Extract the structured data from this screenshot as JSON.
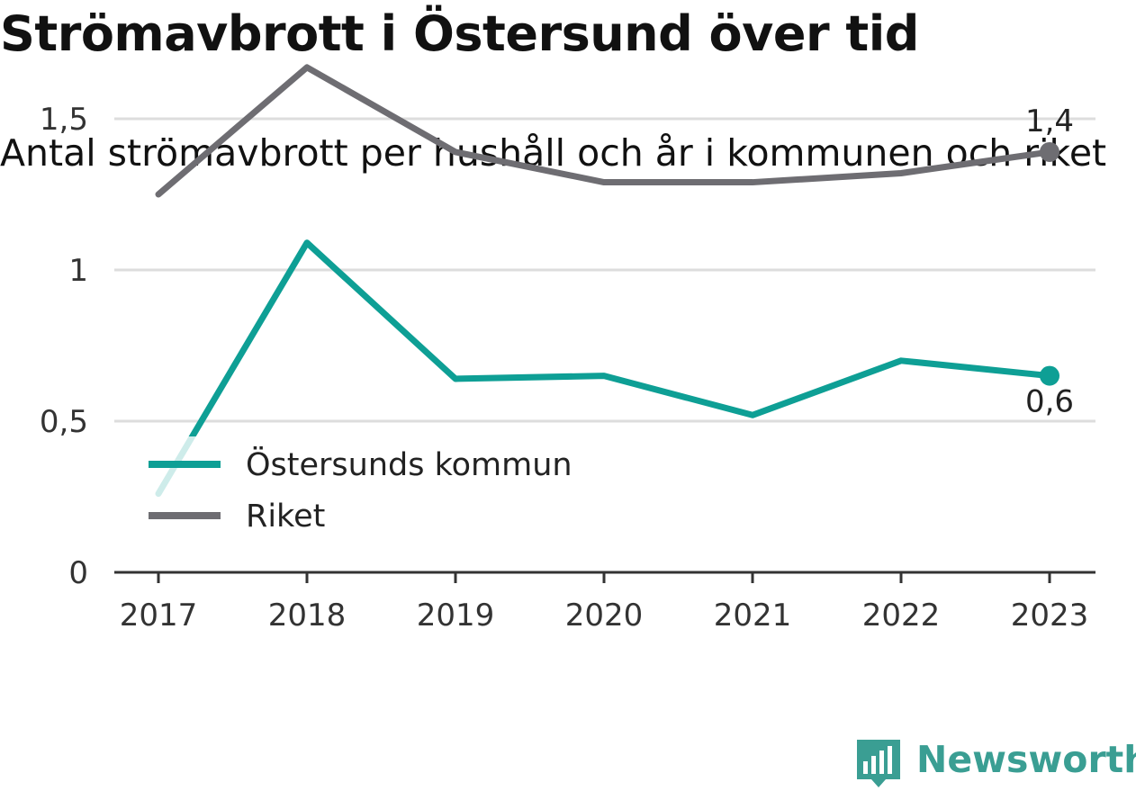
{
  "title": "Strömavbrott i Östersund över tid",
  "subtitle": "Antal strömavbrott per hushåll och år i kommunen och riket",
  "brand": "Newsworthy",
  "colors": {
    "kommun": "#0e9f95",
    "riket": "#6e6d72",
    "grid": "#dddddd",
    "axis": "#333333",
    "brand": "#3a9e93"
  },
  "chart_data": {
    "type": "line",
    "x": [
      "2017",
      "2018",
      "2019",
      "2020",
      "2021",
      "2022",
      "2023"
    ],
    "ylim": [
      0,
      1.5
    ],
    "yticks": [
      0,
      0.5,
      1,
      1.5
    ],
    "ytick_labels": [
      "0",
      "0,5",
      "1",
      "1,5"
    ],
    "grid": true,
    "legend_position": "left",
    "series": [
      {
        "name": "Östersunds kommun",
        "values": [
          0.26,
          1.09,
          0.64,
          0.65,
          0.52,
          0.7,
          0.65
        ],
        "end_label": "0,6"
      },
      {
        "name": "Riket",
        "values": [
          1.25,
          1.67,
          1.39,
          1.29,
          1.29,
          1.32,
          1.39
        ],
        "end_label": "1,4"
      }
    ]
  }
}
